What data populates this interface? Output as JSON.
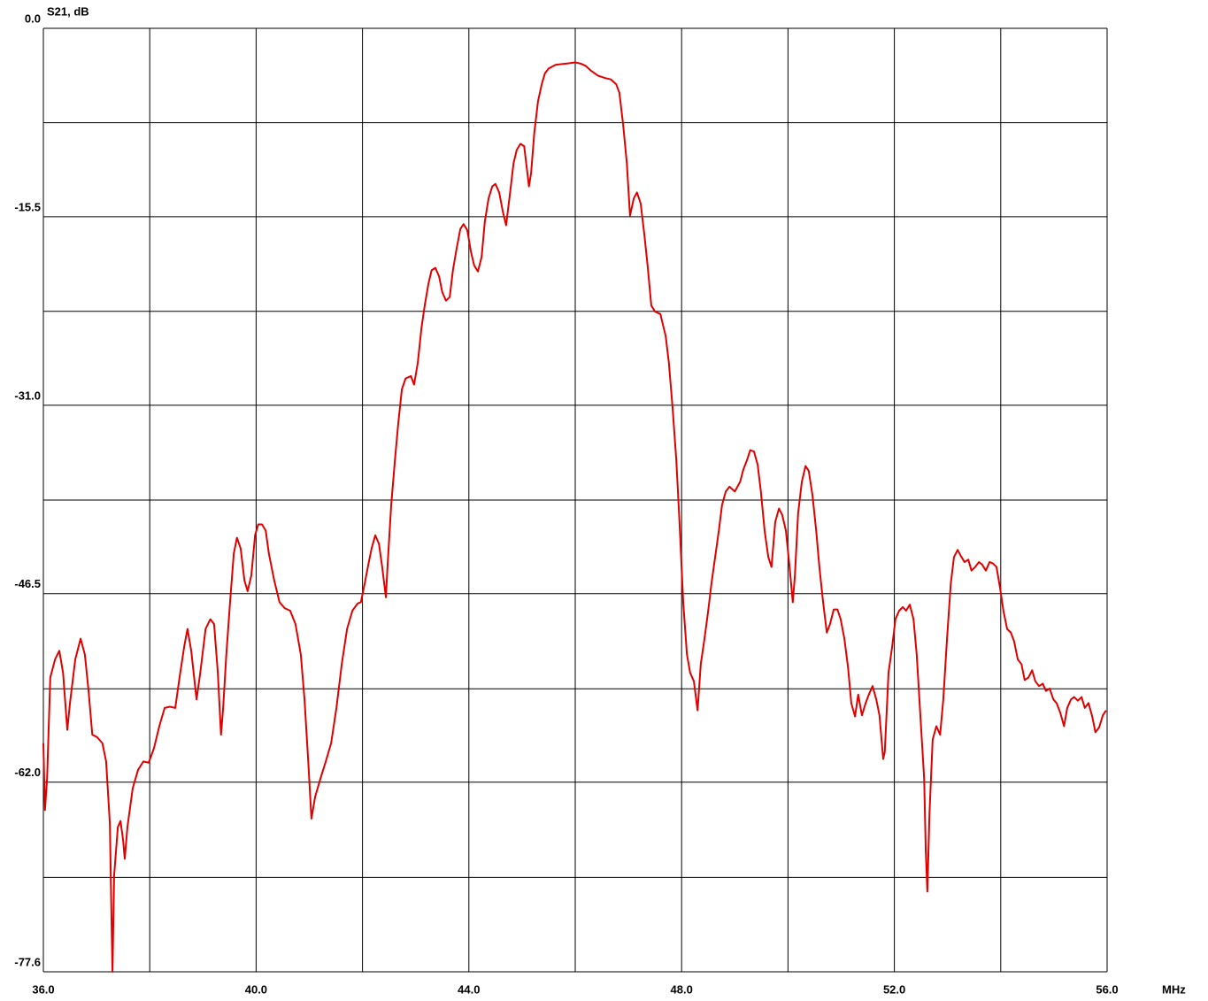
{
  "chart_data": {
    "type": "line",
    "y_label": "S21, dB",
    "x_label": "MHz",
    "color": "#e00000",
    "grid": true,
    "xlim": [
      36,
      56
    ],
    "ylim": [
      -77.6,
      0
    ],
    "xticks": [
      {
        "value": 36,
        "label": "36.0"
      },
      {
        "value": 40,
        "label": "40.0"
      },
      {
        "value": 44,
        "label": "44.0"
      },
      {
        "value": 48,
        "label": "48.0"
      },
      {
        "value": 52,
        "label": "52.0"
      },
      {
        "value": 56,
        "label": "56.0"
      }
    ],
    "xminorticks": [
      38,
      42,
      46,
      50,
      54
    ],
    "yticks": [
      {
        "value": 0,
        "label": "0.0"
      },
      -15.5,
      {
        "value": -31,
        "label": "-31.0"
      },
      -46.5,
      {
        "value": -62,
        "label": "-62.0"
      },
      -77.6
    ],
    "yminorticks": [
      -7.76,
      -23.28,
      -38.8,
      -54.32,
      -69.84
    ],
    "x": [
      36.0,
      36.03,
      36.07,
      36.13,
      36.22,
      36.3,
      36.37,
      36.45,
      36.5,
      36.6,
      36.7,
      36.78,
      36.85,
      36.92,
      37.01,
      37.11,
      37.18,
      37.25,
      37.28,
      37.3,
      37.33,
      37.4,
      37.45,
      37.5,
      37.53,
      37.58,
      37.68,
      37.78,
      37.88,
      37.98,
      38.08,
      38.18,
      38.28,
      38.38,
      38.48,
      38.56,
      38.65,
      38.71,
      38.78,
      38.88,
      38.95,
      39.05,
      39.14,
      39.21,
      39.28,
      39.34,
      39.38,
      39.44,
      39.51,
      39.58,
      39.64,
      39.71,
      39.78,
      39.84,
      39.91,
      39.98,
      40.04,
      40.11,
      40.18,
      40.24,
      40.34,
      40.44,
      40.54,
      40.64,
      40.74,
      40.84,
      40.91,
      40.98,
      41.04,
      41.11,
      41.21,
      41.31,
      41.41,
      41.51,
      41.61,
      41.71,
      41.81,
      41.91,
      41.97,
      42.04,
      42.11,
      42.17,
      42.24,
      42.31,
      42.37,
      42.44,
      42.47,
      42.54,
      42.61,
      42.67,
      42.74,
      42.81,
      42.91,
      42.97,
      43.04,
      43.11,
      43.17,
      43.24,
      43.3,
      43.37,
      43.44,
      43.5,
      43.57,
      43.64,
      43.7,
      43.77,
      43.84,
      43.9,
      43.97,
      44.04,
      44.1,
      44.17,
      44.24,
      44.3,
      44.37,
      44.44,
      44.5,
      44.57,
      44.64,
      44.7,
      44.77,
      44.84,
      44.9,
      44.97,
      45.04,
      45.1,
      45.13,
      45.17,
      45.23,
      45.3,
      45.37,
      45.43,
      45.5,
      45.63,
      45.83,
      46.0,
      46.1,
      46.2,
      46.3,
      46.43,
      46.57,
      46.67,
      46.77,
      46.83,
      46.9,
      46.97,
      47.03,
      47.1,
      47.16,
      47.23,
      47.3,
      47.36,
      47.43,
      47.5,
      47.6,
      47.7,
      47.76,
      47.83,
      47.9,
      47.96,
      48.03,
      48.1,
      48.16,
      48.23,
      48.3,
      48.36,
      48.43,
      48.5,
      48.56,
      48.63,
      48.7,
      48.76,
      48.83,
      48.9,
      49.0,
      49.1,
      49.16,
      49.23,
      49.29,
      49.36,
      49.43,
      49.49,
      49.56,
      49.63,
      49.69,
      49.76,
      49.83,
      49.89,
      49.96,
      50.03,
      50.09,
      50.13,
      50.19,
      50.26,
      50.33,
      50.39,
      50.46,
      50.53,
      50.59,
      50.66,
      50.73,
      50.79,
      50.86,
      50.93,
      50.99,
      51.06,
      51.13,
      51.19,
      51.26,
      51.32,
      51.39,
      51.46,
      51.52,
      51.59,
      51.66,
      51.72,
      51.79,
      51.82,
      51.89,
      51.96,
      52.02,
      52.09,
      52.16,
      52.22,
      52.29,
      52.36,
      52.42,
      52.49,
      52.56,
      52.59,
      52.62,
      52.66,
      52.72,
      52.79,
      52.86,
      52.92,
      52.99,
      53.06,
      53.12,
      53.19,
      53.25,
      53.32,
      53.39,
      53.45,
      53.52,
      53.59,
      53.65,
      53.72,
      53.79,
      53.85,
      53.92,
      53.99,
      54.05,
      54.12,
      54.19,
      54.25,
      54.32,
      54.39,
      54.45,
      54.52,
      54.59,
      54.65,
      54.72,
      54.79,
      54.85,
      54.92,
      54.99,
      55.05,
      55.12,
      55.19,
      55.25,
      55.32,
      55.38,
      55.45,
      55.52,
      55.58,
      55.65,
      55.72,
      55.78,
      55.85,
      55.92,
      55.98
    ],
    "values": [
      -58.8,
      -64.3,
      -61.7,
      -53.4,
      -51.9,
      -51.2,
      -53.0,
      -57.7,
      -55.5,
      -51.9,
      -50.2,
      -51.5,
      -54.5,
      -58.1,
      -58.3,
      -58.8,
      -60.3,
      -65.4,
      -73.0,
      -77.6,
      -69.7,
      -65.7,
      -65.2,
      -66.8,
      -68.3,
      -65.7,
      -62.5,
      -61.0,
      -60.3,
      -60.4,
      -59.2,
      -57.4,
      -55.9,
      -55.8,
      -55.9,
      -53.4,
      -50.8,
      -49.4,
      -51.2,
      -55.2,
      -53.0,
      -49.4,
      -48.6,
      -49.0,
      -53.0,
      -58.1,
      -55.9,
      -51.5,
      -47.2,
      -43.2,
      -41.9,
      -42.8,
      -45.4,
      -46.3,
      -45.0,
      -41.7,
      -40.8,
      -40.8,
      -41.3,
      -43.2,
      -45.4,
      -47.2,
      -47.7,
      -47.9,
      -49.0,
      -51.5,
      -55.2,
      -60.3,
      -65.0,
      -63.2,
      -61.7,
      -60.3,
      -58.8,
      -55.9,
      -52.3,
      -49.4,
      -47.9,
      -47.3,
      -47.2,
      -45.7,
      -44.1,
      -42.8,
      -41.7,
      -42.4,
      -44.3,
      -46.8,
      -44.3,
      -39.2,
      -35.5,
      -32.6,
      -29.7,
      -28.8,
      -28.6,
      -29.3,
      -27.5,
      -24.6,
      -22.8,
      -21.0,
      -19.9,
      -19.7,
      -20.4,
      -21.7,
      -22.4,
      -22.1,
      -19.9,
      -18.1,
      -16.5,
      -16.1,
      -16.6,
      -18.4,
      -19.5,
      -20.0,
      -18.8,
      -15.9,
      -14.0,
      -13.0,
      -12.8,
      -13.5,
      -15.1,
      -16.2,
      -13.7,
      -11.1,
      -10.0,
      -9.5,
      -9.7,
      -11.9,
      -13.0,
      -11.9,
      -8.6,
      -6.0,
      -4.6,
      -3.7,
      -3.3,
      -3.0,
      -2.9,
      -2.8,
      -2.9,
      -3.1,
      -3.5,
      -3.9,
      -4.1,
      -4.2,
      -4.6,
      -5.3,
      -7.9,
      -11.1,
      -15.4,
      -14.0,
      -13.5,
      -14.4,
      -17.0,
      -19.5,
      -22.8,
      -23.3,
      -23.5,
      -25.3,
      -27.5,
      -31.2,
      -35.5,
      -40.6,
      -47.2,
      -51.5,
      -53.0,
      -53.7,
      -56.1,
      -52.3,
      -50.2,
      -47.9,
      -45.7,
      -43.5,
      -41.3,
      -39.2,
      -38.1,
      -37.7,
      -38.1,
      -37.3,
      -36.3,
      -35.5,
      -34.7,
      -34.8,
      -35.9,
      -38.1,
      -41.3,
      -43.5,
      -44.3,
      -40.6,
      -39.5,
      -40.0,
      -41.3,
      -44.3,
      -47.2,
      -45.0,
      -39.9,
      -37.3,
      -36.0,
      -36.4,
      -38.4,
      -41.3,
      -44.3,
      -47.2,
      -49.7,
      -49.0,
      -47.8,
      -47.8,
      -48.6,
      -50.2,
      -52.6,
      -55.5,
      -56.6,
      -54.8,
      -56.5,
      -55.5,
      -54.8,
      -54.1,
      -55.2,
      -56.5,
      -60.1,
      -59.5,
      -53.0,
      -50.8,
      -48.6,
      -47.9,
      -47.6,
      -47.9,
      -47.4,
      -48.6,
      -51.5,
      -56.6,
      -61.7,
      -67.6,
      -71.0,
      -64.6,
      -58.5,
      -57.4,
      -58.1,
      -55.2,
      -50.2,
      -45.7,
      -43.5,
      -42.9,
      -43.4,
      -43.9,
      -43.7,
      -44.6,
      -44.3,
      -43.9,
      -44.1,
      -44.6,
      -43.9,
      -44.0,
      -44.3,
      -46.1,
      -47.9,
      -49.4,
      -49.7,
      -50.4,
      -51.9,
      -52.3,
      -53.6,
      -53.4,
      -52.8,
      -53.7,
      -54.1,
      -53.9,
      -54.5,
      -54.3,
      -55.2,
      -55.5,
      -56.3,
      -57.4,
      -55.9,
      -55.2,
      -55.0,
      -55.3,
      -55.0,
      -55.9,
      -55.5,
      -56.6,
      -57.9,
      -57.5,
      -56.5,
      -56.1
    ]
  }
}
